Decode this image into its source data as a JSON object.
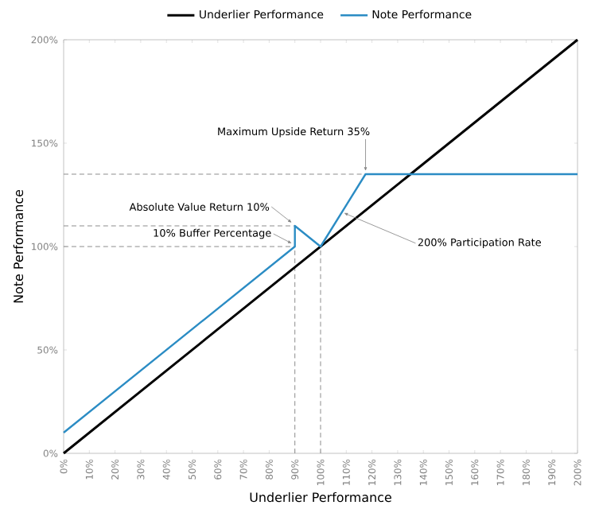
{
  "chart_data": {
    "type": "line",
    "xlabel": "Underlier Performance",
    "ylabel": "Note Performance",
    "legend": "top",
    "marker": "none",
    "grid": false,
    "xlim": [
      0,
      200
    ],
    "ylim": [
      0,
      200
    ],
    "xticks": [
      {
        "value": 0,
        "label": "0%"
      },
      {
        "value": 10,
        "label": "10%"
      },
      {
        "value": 20,
        "label": "20%"
      },
      {
        "value": 30,
        "label": "30%"
      },
      {
        "value": 40,
        "label": "40%"
      },
      {
        "value": 50,
        "label": "50%"
      },
      {
        "value": 60,
        "label": "60%"
      },
      {
        "value": 70,
        "label": "70%"
      },
      {
        "value": 80,
        "label": "80%"
      },
      {
        "value": 90,
        "label": "90%"
      },
      {
        "value": 100,
        "label": "100%"
      },
      {
        "value": 110,
        "label": "110%"
      },
      {
        "value": 120,
        "label": "120%"
      },
      {
        "value": 130,
        "label": "130%"
      },
      {
        "value": 140,
        "label": "140%"
      },
      {
        "value": 150,
        "label": "150%"
      },
      {
        "value": 160,
        "label": "160%"
      },
      {
        "value": 170,
        "label": "170%"
      },
      {
        "value": 180,
        "label": "180%"
      },
      {
        "value": 190,
        "label": "190%"
      },
      {
        "value": 200,
        "label": "200%"
      }
    ],
    "yticks": [
      {
        "value": 0,
        "label": "0%"
      },
      {
        "value": 50,
        "label": "50%"
      },
      {
        "value": 100,
        "label": "100%"
      },
      {
        "value": 150,
        "label": "150%"
      },
      {
        "value": 200,
        "label": "200%"
      }
    ],
    "series": [
      {
        "x": [
          0,
          117.5
        ],
        "values": [
          135,
          135
        ],
        "color": "#8c8c8c",
        "line_style": "dashed"
      },
      {
        "x": [
          0,
          90
        ],
        "values": [
          110,
          110
        ],
        "color": "#8c8c8c",
        "line_style": "dashed"
      },
      {
        "x": [
          0,
          90
        ],
        "values": [
          100,
          100
        ],
        "color": "#8c8c8c",
        "line_style": "dashed"
      },
      {
        "x": [
          90,
          90
        ],
        "values": [
          0,
          100
        ],
        "color": "#8c8c8c",
        "line_style": "dashed"
      },
      {
        "x": [
          100,
          100
        ],
        "values": [
          0,
          100
        ],
        "color": "#8c8c8c",
        "line_style": "dashed"
      },
      {
        "name": "Underlier Performance",
        "x": [
          0,
          200
        ],
        "values": [
          0,
          200
        ],
        "color": "#000000",
        "line_style": "solid"
      },
      {
        "name": "Note Performance",
        "x": [
          0,
          90,
          90,
          100,
          117.5,
          200
        ],
        "values": [
          10,
          100,
          110,
          100,
          135,
          135
        ],
        "color": "#2b8cc4",
        "line_style": "solid"
      }
    ],
    "annotations": [
      {
        "text": "Maximum Upside Return 35%",
        "x": 117.5,
        "y": 135
      },
      {
        "text": "Absolute Value Return 10%",
        "x": 90,
        "y": 110
      },
      {
        "text": "10% Buffer Percentage",
        "x": 90,
        "y": 100
      },
      {
        "text": "200% Participation Rate",
        "x": 108.5,
        "y": 117
      }
    ]
  }
}
